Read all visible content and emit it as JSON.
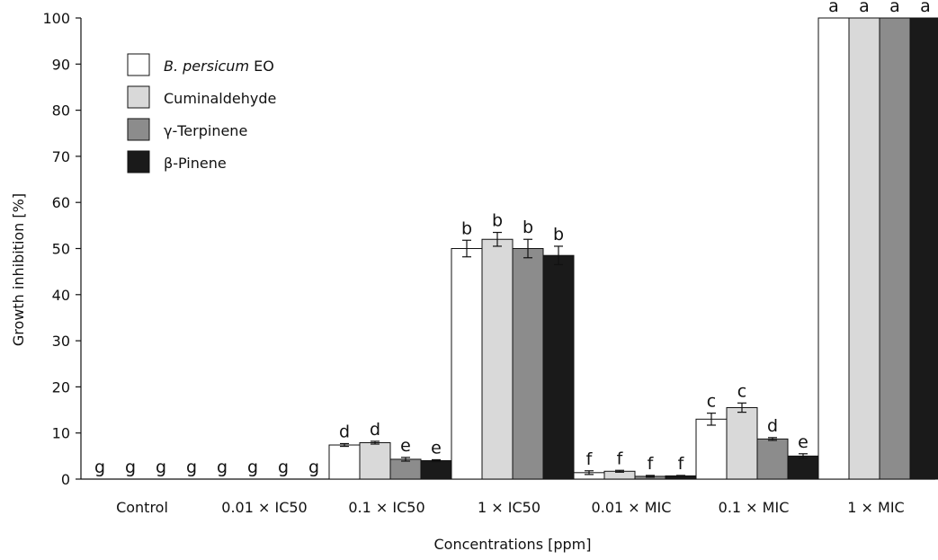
{
  "chart_data": {
    "type": "bar",
    "xlabel": "Concentrations [ppm]",
    "ylabel": "Growth inhibition [%]",
    "ylim": [
      0,
      100
    ],
    "yticks": [
      0,
      10,
      20,
      30,
      40,
      50,
      60,
      70,
      80,
      90,
      100
    ],
    "grid": false,
    "legend_position": "top-left",
    "categories": [
      "Control",
      "0.01 × IC50",
      "0.1 × IC50",
      "1 × IC50",
      "0.01 × MIC",
      "0.1 × MIC",
      "1 × MIC"
    ],
    "series": [
      {
        "name": "B. persicum EO",
        "name_italic": "B. persicum",
        "name_rest": " EO",
        "color": "#ffffff",
        "values": [
          0,
          0,
          7.4,
          50,
          1.4,
          13,
          100
        ],
        "errors": [
          0,
          0,
          0.3,
          1.8,
          0.4,
          1.3,
          0
        ],
        "letters": [
          "g",
          "g",
          "d",
          "b",
          "f",
          "c",
          "a"
        ]
      },
      {
        "name": "Cuminaldehyde",
        "color": "#d9d9d9",
        "values": [
          0,
          0,
          7.9,
          52,
          1.7,
          15.5,
          100
        ],
        "errors": [
          0,
          0,
          0.3,
          1.5,
          0.2,
          1.0,
          0
        ],
        "letters": [
          "g",
          "g",
          "d",
          "b",
          "f",
          "c",
          "a"
        ]
      },
      {
        "name": "γ-Terpinene",
        "color": "#8c8c8c",
        "values": [
          0,
          0,
          4.3,
          50,
          0.6,
          8.7,
          100
        ],
        "errors": [
          0,
          0,
          0.4,
          2.0,
          0.2,
          0.3,
          0
        ],
        "letters": [
          "g",
          "g",
          "e",
          "b",
          "f",
          "d",
          "a"
        ]
      },
      {
        "name": "β-Pinene",
        "color": "#1a1a1a",
        "values": [
          0,
          0,
          4.0,
          48.5,
          0.7,
          5.0,
          100
        ],
        "errors": [
          0,
          0,
          0.2,
          2.0,
          0.1,
          0.5,
          0
        ],
        "letters": [
          "g",
          "g",
          "e",
          "b",
          "f",
          "e",
          "a"
        ]
      }
    ]
  }
}
